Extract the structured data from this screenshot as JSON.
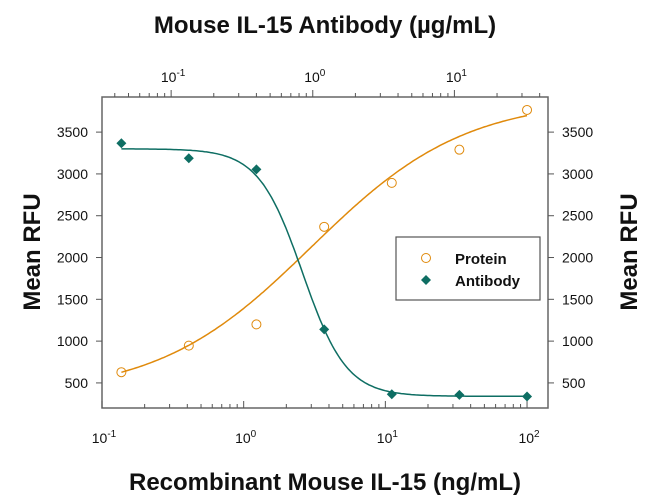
{
  "chart_data": {
    "type": "scatter",
    "title_top": "Mouse IL-15 Antibody (µg/mL)",
    "xlabel": "Recombinant Mouse IL-15 (ng/mL)",
    "ylabel_left": "Mean RFU",
    "ylabel_right": "Mean RFU",
    "x_scale": "log",
    "xlim": [
      0.1,
      140.6
    ],
    "x_top_lim": [
      0.0325,
      45.8
    ],
    "ylim": [
      200,
      3920
    ],
    "x_ticks": [
      {
        "base": "10",
        "exp": "-1",
        "value": 0.1
      },
      {
        "base": "10",
        "exp": "0",
        "value": 1
      },
      {
        "base": "10",
        "exp": "1",
        "value": 10
      },
      {
        "base": "10",
        "exp": "2",
        "value": 100
      }
    ],
    "x_top_ticks": [
      {
        "base": "10",
        "exp": "-1",
        "value": 0.1
      },
      {
        "base": "10",
        "exp": "0",
        "value": 1
      },
      {
        "base": "10",
        "exp": "1",
        "value": 10
      }
    ],
    "y_ticks": [
      "500",
      "1000",
      "1500",
      "2000",
      "2500",
      "3000",
      "3500"
    ],
    "legend_position": "center-right",
    "series": [
      {
        "name": "Protein",
        "marker": "open-circle",
        "color": "#E08A0C",
        "x": [
          0.137,
          0.41,
          1.23,
          3.7,
          11.1,
          33.3,
          100
        ],
        "y": [
          628,
          946,
          1200,
          2367,
          2893,
          3290,
          3765
        ],
        "fit": {
          "bottom": 350,
          "top": 3900,
          "ec50": 3.0,
          "hill": 0.8
        }
      },
      {
        "name": "Antibody",
        "marker": "filled-diamond",
        "color": "#0E6E63",
        "x": [
          0.137,
          0.41,
          1.23,
          3.7,
          11.1,
          33.3,
          100
        ],
        "y": [
          3367,
          3188,
          3054,
          1140,
          365,
          357,
          337
        ],
        "fit": {
          "bottom": 340,
          "top": 3300,
          "ec50": 2.6,
          "hill": -2.8
        }
      }
    ]
  }
}
